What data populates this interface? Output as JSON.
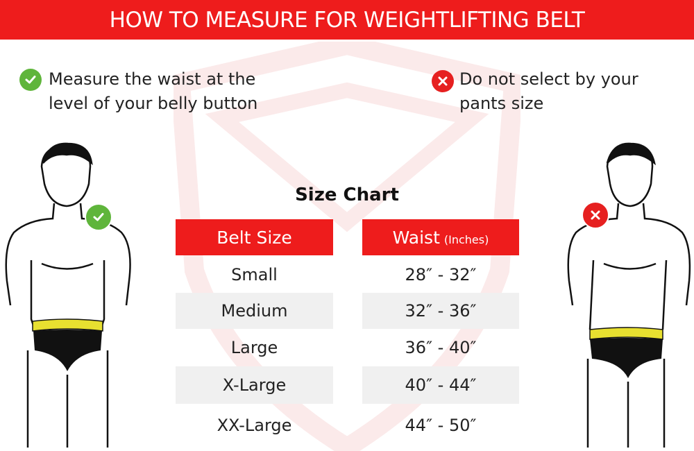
{
  "banner": {
    "title": "HOW TO MEASURE FOR WEIGHTLIFTING BELT"
  },
  "tips": [
    {
      "icon": "check-circle-icon",
      "text": "Measure the waist at the level of your belly button"
    },
    {
      "icon": "x-circle-icon",
      "text": "Do not select by your pants size"
    }
  ],
  "colors": {
    "accent": "#ee1c1c",
    "good": "#5fb53b",
    "bad": "#e62020",
    "stripe": "#f0f0f0",
    "tape": "#e8e030"
  },
  "size_chart": {
    "title": "Size Chart",
    "headers": {
      "size": "Belt Size",
      "waist": "Waist",
      "waist_unit": "(Inches)"
    },
    "rows": [
      {
        "size": "Small",
        "waist": "28″ - 32″"
      },
      {
        "size": "Medium",
        "waist": "32″ - 36″"
      },
      {
        "size": "Large",
        "waist": "36″ - 40″"
      },
      {
        "size": "X-Large",
        "waist": "40″ - 44″"
      },
      {
        "size": "XX-Large",
        "waist": "44″ - 50″"
      }
    ]
  }
}
